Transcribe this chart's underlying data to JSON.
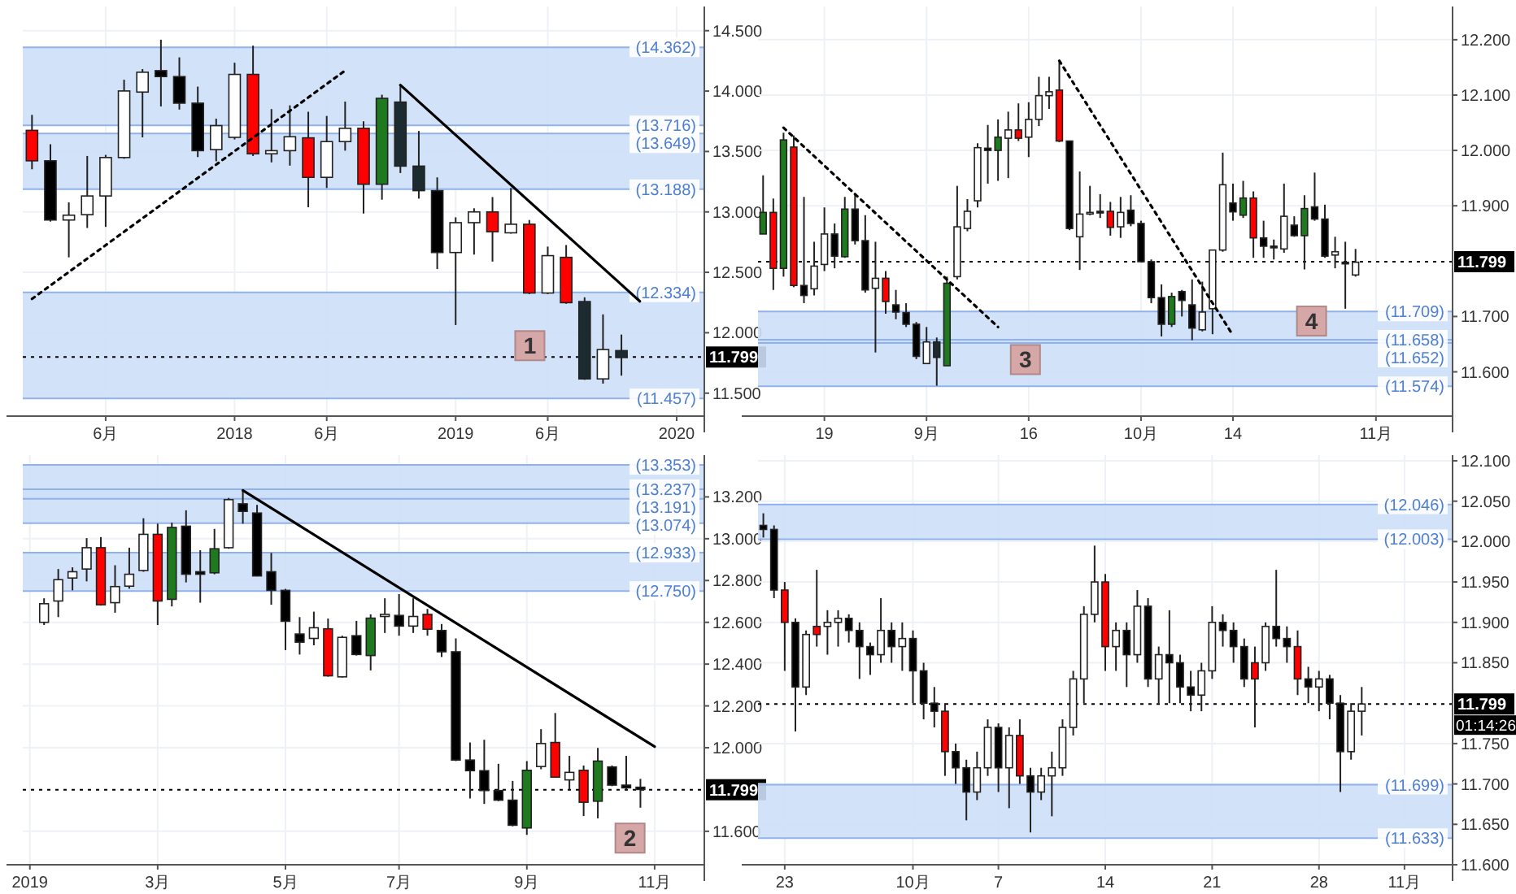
{
  "chart_data": [
    {
      "type": "candlestick",
      "grid": true,
      "categories": [
        null,
        null,
        null,
        null,
        "6月",
        null,
        null,
        null,
        null,
        null,
        null,
        "2018",
        null,
        null,
        null,
        null,
        "6月",
        null,
        null,
        null,
        null,
        null,
        null,
        "2019",
        null,
        null,
        null,
        null,
        "6月",
        null,
        null,
        null,
        null,
        null,
        null,
        "2020",
        null
      ],
      "ohlc": [
        [
          13.675,
          13.803,
          13.353,
          13.423
        ],
        [
          13.423,
          13.56,
          12.92,
          12.933
        ],
        [
          12.933,
          13.079,
          12.624,
          12.973
        ],
        [
          12.977,
          13.463,
          12.867,
          13.132
        ],
        [
          13.132,
          13.472,
          12.876,
          13.45
        ],
        [
          13.45,
          14.094,
          13.44,
          14.001
        ],
        [
          13.992,
          14.182,
          13.617,
          14.156
        ],
        [
          14.169,
          14.425,
          13.873,
          14.12
        ],
        [
          14.12,
          14.279,
          13.847,
          13.9
        ],
        [
          13.9,
          14.037,
          13.454,
          13.507
        ],
        [
          13.516,
          13.772,
          13.419,
          13.714
        ],
        [
          13.617,
          14.235,
          13.6,
          14.138
        ],
        [
          14.138,
          14.376,
          13.463,
          13.481
        ],
        [
          13.481,
          13.851,
          13.41,
          13.507
        ],
        [
          13.507,
          13.882,
          13.383,
          13.622
        ],
        [
          13.613,
          13.829,
          13.039,
          13.286
        ],
        [
          13.286,
          13.794,
          13.198,
          13.582
        ],
        [
          13.582,
          13.913,
          13.507,
          13.692
        ],
        [
          13.692,
          13.75,
          12.986,
          13.229
        ],
        [
          13.229,
          13.97,
          13.101,
          13.94
        ],
        [
          13.909,
          14.054,
          13.322,
          13.379
        ],
        [
          13.379,
          13.67,
          13.11,
          13.176
        ],
        [
          13.176,
          13.286,
          12.527,
          12.664
        ],
        [
          12.664,
          12.955,
          12.064,
          12.911
        ],
        [
          12.911,
          13.03,
          12.647,
          13.0
        ],
        [
          13.0,
          13.123,
          12.589,
          12.836
        ],
        [
          12.827,
          13.198,
          12.82,
          12.898
        ],
        [
          12.898,
          12.933,
          12.32,
          12.329
        ],
        [
          12.329,
          12.713,
          12.32,
          12.638
        ],
        [
          12.624,
          12.726,
          12.24,
          12.249
        ],
        [
          12.258,
          12.293,
          11.61,
          11.618
        ],
        [
          11.618,
          12.152,
          11.579,
          11.861
        ],
        [
          11.852,
          11.985,
          11.645,
          11.795
        ],
        null,
        null,
        null,
        null
      ],
      "colors": [
        "#ff0000",
        "#000000",
        "#ffffff",
        "#ffffff",
        "#ffffff",
        "#ffffff",
        "#ffffff",
        "#000000",
        "#000000",
        "#000000",
        "#ffffff",
        "#ffffff",
        "#ff0000",
        "#ffffff",
        "#ffffff",
        "#ff0000",
        "#ffffff",
        "#ffffff",
        "#ff0000",
        "#1f7a1f",
        "#1b2b2f",
        "#1b2b2f",
        "#000000",
        "#ffffff",
        "#ffffff",
        "#ff0000",
        "#ffffff",
        "#ff0000",
        "#ffffff",
        "#ff0000",
        "#1b2b2f",
        "#ffffff",
        "#1b2b2f",
        null,
        null,
        null,
        null
      ],
      "series": [
        {
          "type": "line",
          "color": "#000000",
          "line_style": "dotted",
          "values": [
            12.28,
            null,
            null,
            null,
            null,
            null,
            null,
            null,
            null,
            null,
            null,
            null,
            null,
            null,
            null,
            null,
            null,
            14.17,
            null,
            null,
            null,
            null,
            null,
            null,
            null,
            null,
            null,
            null,
            null,
            null,
            null,
            null,
            null,
            null,
            null,
            null,
            null
          ]
        },
        {
          "type": "line",
          "color": "#000000",
          "line_style": "solid",
          "values": [
            null,
            null,
            null,
            null,
            null,
            null,
            null,
            null,
            null,
            null,
            null,
            null,
            null,
            null,
            null,
            null,
            null,
            null,
            null,
            null,
            14.05,
            null,
            null,
            null,
            null,
            null,
            null,
            null,
            null,
            null,
            null,
            null,
            null,
            12.26,
            null,
            null,
            null
          ]
        }
      ],
      "ylim": [
        11.31,
        14.7
      ],
      "yticks": [
        {
          "value": 11.5,
          "label": "11.500"
        },
        {
          "value": 12,
          "label": "12.000"
        },
        {
          "value": 12.5,
          "label": "12.500"
        },
        {
          "value": 13,
          "label": "13.000"
        },
        {
          "value": 13.5,
          "label": "13.500"
        },
        {
          "value": 14,
          "label": "14.000"
        },
        {
          "value": 14.5,
          "label": "14.500"
        }
      ],
      "bands": [
        {
          "axis": "y",
          "from": 13.716,
          "to": 14.362,
          "color": "#cddff7"
        },
        {
          "axis": "y",
          "from": 13.188,
          "to": 13.649,
          "color": "#cddff7"
        },
        {
          "axis": "y",
          "from": 11.457,
          "to": 12.334,
          "color": "#cddff7"
        }
      ],
      "ref_lines": [
        {
          "axis": "y",
          "value": 14.362,
          "label": "(14.362)",
          "color": "#8fb2ec"
        },
        {
          "axis": "y",
          "value": 13.716,
          "label": "(13.716)",
          "color": "#8fb2ec"
        },
        {
          "axis": "y",
          "value": 13.649,
          "label": "(13.649)",
          "color": "#8fb2ec"
        },
        {
          "axis": "y",
          "value": 13.188,
          "label": "(13.188)",
          "color": "#8fb2ec"
        },
        {
          "axis": "y",
          "value": 12.334,
          "label": "(12.334)",
          "color": "#8fb2ec"
        },
        {
          "axis": "y",
          "value": 11.457,
          "label": "(11.457)",
          "color": "#8fb2ec"
        },
        {
          "axis": "y",
          "value": 11.799,
          "label": "11.799",
          "color": "#000000",
          "line_style": "dotted"
        }
      ],
      "annotations": [
        "1"
      ]
    },
    {
      "type": "candlestick",
      "grid": true,
      "categories": [
        null,
        null,
        null,
        null,
        null,
        null,
        "19",
        null,
        null,
        null,
        null,
        null,
        null,
        null,
        null,
        null,
        "9月",
        null,
        null,
        null,
        null,
        null,
        null,
        null,
        null,
        null,
        "16",
        null,
        null,
        null,
        null,
        null,
        null,
        null,
        null,
        null,
        null,
        "10月",
        null,
        null,
        null,
        null,
        null,
        null,
        null,
        null,
        "14",
        null,
        null,
        null,
        null,
        null,
        null,
        null,
        null,
        null,
        null,
        null,
        null,
        null,
        "11月",
        null,
        null,
        null,
        null,
        null,
        null,
        null
      ],
      "ohlc": [
        [
          11.849,
          11.955,
          11.849,
          11.888
        ],
        [
          11.888,
          11.913,
          11.748,
          11.787
        ],
        [
          11.787,
          12.032,
          11.772,
          12.019
        ],
        [
          12.006,
          12.027,
          11.753,
          11.756
        ],
        [
          11.756,
          11.916,
          11.724,
          11.738
        ],
        [
          11.75,
          11.835,
          11.738,
          11.791
        ],
        [
          11.794,
          11.897,
          11.782,
          11.849
        ],
        [
          11.849,
          11.868,
          11.787,
          11.809
        ],
        [
          11.808,
          11.916,
          11.806,
          11.894
        ],
        [
          11.894,
          11.923,
          11.83,
          11.837
        ],
        [
          11.837,
          11.883,
          11.743,
          11.748
        ],
        [
          11.751,
          11.835,
          11.635,
          11.769
        ],
        [
          11.769,
          11.782,
          11.705,
          11.727
        ],
        [
          11.721,
          11.748,
          11.695,
          11.708
        ],
        [
          11.707,
          11.724,
          11.681,
          11.686
        ],
        [
          11.686,
          11.69,
          11.623,
          11.628
        ],
        [
          11.615,
          11.681,
          11.615,
          11.654
        ],
        [
          11.654,
          11.662,
          11.575,
          11.626
        ],
        [
          11.611,
          11.772,
          11.611,
          11.76
        ],
        [
          11.772,
          11.936,
          11.767,
          11.862
        ],
        [
          11.859,
          11.912,
          11.854,
          11.89
        ],
        [
          11.909,
          12.013,
          11.897,
          12.005
        ],
        [
          12.004,
          12.046,
          11.94,
          12.0
        ],
        [
          12.0,
          12.056,
          11.945,
          12.024
        ],
        [
          12.022,
          12.07,
          11.95,
          12.037
        ],
        [
          12.037,
          12.085,
          12.017,
          12.022
        ],
        [
          12.024,
          12.087,
          11.988,
          12.056
        ],
        [
          12.056,
          12.133,
          12.044,
          12.099
        ],
        [
          12.099,
          12.133,
          12.075,
          12.106
        ],
        [
          12.109,
          12.162,
          12.015,
          12.017
        ],
        [
          12.017,
          12.017,
          11.856,
          11.859
        ],
        [
          11.844,
          11.962,
          11.784,
          11.885
        ],
        [
          11.887,
          11.936,
          11.883,
          11.888
        ],
        [
          11.89,
          11.921,
          11.878,
          11.887
        ],
        [
          11.89,
          11.907,
          11.846,
          11.861
        ],
        [
          11.862,
          11.916,
          11.842,
          11.888
        ],
        [
          11.892,
          11.919,
          11.863,
          11.868
        ],
        [
          11.868,
          11.873,
          11.799,
          11.799
        ],
        [
          11.799,
          11.803,
          11.724,
          11.734
        ],
        [
          11.734,
          11.758,
          11.664,
          11.686
        ],
        [
          11.686,
          11.743,
          11.681,
          11.736
        ],
        [
          11.745,
          11.748,
          11.7,
          11.729
        ],
        [
          11.721,
          11.767,
          11.657,
          11.679
        ],
        [
          11.676,
          11.763,
          11.673,
          11.708
        ],
        [
          11.714,
          11.82,
          11.668,
          11.82
        ],
        [
          11.82,
          11.996,
          11.817,
          11.938
        ],
        [
          11.905,
          11.94,
          11.873,
          11.889
        ],
        [
          11.883,
          11.945,
          11.878,
          11.914
        ],
        [
          11.914,
          11.926,
          11.806,
          11.842
        ],
        [
          11.842,
          11.873,
          11.806,
          11.827
        ],
        [
          11.827,
          11.839,
          11.803,
          11.825
        ],
        [
          11.822,
          11.94,
          11.815,
          11.881
        ],
        [
          11.865,
          11.881,
          11.844,
          11.846
        ],
        [
          11.846,
          11.919,
          11.785,
          11.895
        ],
        [
          11.898,
          11.96,
          11.873,
          11.876
        ],
        [
          11.876,
          11.902,
          11.806,
          11.809
        ],
        [
          11.811,
          11.844,
          11.787,
          11.817
        ],
        [
          11.798,
          11.835,
          11.714,
          11.796
        ],
        [
          11.775,
          11.822,
          11.772,
          11.798
        ],
        null,
        null,
        null,
        null,
        null,
        null,
        null,
        null,
        null
      ],
      "colors": [
        "#1f7a1f",
        "#ff0000",
        "#1f7a1f",
        "#ff0000",
        "#000000",
        "#ffffff",
        "#ffffff",
        "#000000",
        "#1f7a1f",
        "#000000",
        "#000000",
        "#ffffff",
        "#ff0000",
        "#000000",
        "#000000",
        "#000000",
        "#ffffff",
        "#1b2b2f",
        "#1f7a1f",
        "#ffffff",
        "#ffffff",
        "#ffffff",
        "#000000",
        "#1f7a1f",
        "#ffffff",
        "#ff0000",
        "#ffffff",
        "#ffffff",
        "#ffffff",
        "#ff0000",
        "#000000",
        "#ffffff",
        "#ffffff",
        "#000000",
        "#ff0000",
        "#ffffff",
        "#000000",
        "#000000",
        "#000000",
        "#000000",
        "#1f7a1f",
        "#000000",
        "#000000",
        "#ffffff",
        "#ffffff",
        "#ffffff",
        "#000000",
        "#1f7a1f",
        "#ff0000",
        "#000000",
        "#000000",
        "#ffffff",
        "#000000",
        "#1f7a1f",
        "#000000",
        "#000000",
        "#ffffff",
        "#000000",
        "#ffffff",
        null,
        null,
        null,
        null,
        null,
        null,
        null,
        null,
        null
      ],
      "series": [
        {
          "type": "line",
          "color": "#000000",
          "line_style": "dotted",
          "values": [
            null,
            null,
            12.041,
            null,
            null,
            null,
            null,
            null,
            null,
            null,
            null,
            null,
            null,
            null,
            null,
            null,
            null,
            null,
            null,
            null,
            null,
            null,
            null,
            11.681,
            null,
            null,
            null,
            null,
            null,
            null,
            null,
            null,
            null,
            null,
            null,
            null,
            null,
            null,
            null,
            null,
            null,
            null,
            null,
            null,
            null,
            null,
            null,
            null,
            null,
            null,
            null,
            null,
            null,
            null,
            null,
            null,
            null,
            null,
            null,
            null,
            null,
            null,
            null,
            null,
            null,
            null,
            null,
            null
          ]
        },
        {
          "type": "line",
          "color": "#000000",
          "line_style": "dotted",
          "values": [
            null,
            null,
            null,
            null,
            null,
            null,
            null,
            null,
            null,
            null,
            null,
            null,
            null,
            null,
            null,
            null,
            null,
            null,
            null,
            null,
            null,
            null,
            null,
            null,
            null,
            null,
            null,
            null,
            null,
            12.162,
            null,
            null,
            null,
            null,
            null,
            null,
            null,
            null,
            null,
            null,
            null,
            null,
            null,
            null,
            null,
            null,
            11.666,
            null,
            null,
            null,
            null,
            null,
            null,
            null,
            null,
            null,
            null,
            null,
            null,
            null,
            null,
            null,
            null,
            null,
            null,
            null,
            null,
            null
          ]
        }
      ],
      "ylim": [
        11.52,
        12.26
      ],
      "yticks": [
        {
          "value": 11.6,
          "label": "11.600"
        },
        {
          "value": 11.7,
          "label": "11.700"
        },
        {
          "value": 11.9,
          "label": "11.900"
        },
        {
          "value": 12,
          "label": "12.000"
        },
        {
          "value": 12.1,
          "label": "12.100"
        },
        {
          "value": 12.2,
          "label": "12.200"
        }
      ],
      "bands": [
        {
          "axis": "y",
          "from": 11.652,
          "to": 11.709,
          "color": "#cddff7"
        },
        {
          "axis": "y",
          "from": 11.574,
          "to": 11.658,
          "color": "#cddff7"
        }
      ],
      "ref_lines": [
        {
          "axis": "y",
          "value": 11.709,
          "label": "(11.709)",
          "color": "#8fb2ec"
        },
        {
          "axis": "y",
          "value": 11.658,
          "label": "(11.658)",
          "color": "#8fb2ec"
        },
        {
          "axis": "y",
          "value": 11.652,
          "label": "(11.652)",
          "color": "#8fb2ec"
        },
        {
          "axis": "y",
          "value": 11.574,
          "label": "(11.574)",
          "color": "#8fb2ec"
        },
        {
          "axis": "y",
          "value": 11.799,
          "label": "11.799",
          "color": "#000000",
          "line_style": "dotted"
        }
      ],
      "annotations": [
        "3",
        "4"
      ]
    },
    {
      "type": "candlestick",
      "grid": true,
      "categories": [
        "2019",
        null,
        null,
        null,
        null,
        null,
        null,
        null,
        null,
        "3月",
        null,
        null,
        null,
        null,
        null,
        null,
        null,
        null,
        "5月",
        null,
        null,
        null,
        null,
        null,
        null,
        null,
        "7月",
        null,
        null,
        null,
        null,
        null,
        null,
        null,
        null,
        "9月",
        null,
        null,
        null,
        null,
        null,
        null,
        null,
        null,
        "11月",
        null,
        null,
        null
      ],
      "ohlc": [
        null,
        [
          12.6,
          12.715,
          12.587,
          12.689
        ],
        [
          12.702,
          12.855,
          12.625,
          12.804
        ],
        [
          12.812,
          12.863,
          12.753,
          12.842
        ],
        [
          12.855,
          13.003,
          12.796,
          12.957
        ],
        [
          12.957,
          13.008,
          12.68,
          12.684
        ],
        [
          12.694,
          12.873,
          12.646,
          12.771
        ],
        [
          12.773,
          12.957,
          12.761,
          12.83
        ],
        [
          12.848,
          13.098,
          12.842,
          13.021
        ],
        [
          13.021,
          13.072,
          12.587,
          12.702
        ],
        [
          12.71,
          13.077,
          12.676,
          13.054
        ],
        [
          13.06,
          13.136,
          12.791,
          12.83
        ],
        [
          12.842,
          12.945,
          12.694,
          12.83
        ],
        [
          12.837,
          13.047,
          12.83,
          12.952
        ],
        [
          12.957,
          13.195,
          12.952,
          13.187
        ],
        [
          13.167,
          13.231,
          13.072,
          13.131
        ],
        [
          13.123,
          13.162,
          12.82,
          12.822
        ],
        [
          12.842,
          12.932,
          12.684,
          12.753
        ],
        [
          12.753,
          12.76,
          12.467,
          12.605
        ],
        [
          12.544,
          12.625,
          12.446,
          12.505
        ],
        [
          12.523,
          12.651,
          12.49,
          12.574
        ],
        [
          12.569,
          12.618,
          12.34,
          12.344
        ],
        [
          12.339,
          12.536,
          12.336,
          12.528
        ],
        [
          12.536,
          12.607,
          12.441,
          12.446
        ],
        [
          12.441,
          12.638,
          12.37,
          12.62
        ],
        [
          12.628,
          12.715,
          12.549,
          12.638
        ],
        [
          12.633,
          12.735,
          12.536,
          12.582
        ],
        [
          12.582,
          12.715,
          12.549,
          12.628
        ],
        [
          12.638,
          12.664,
          12.536,
          12.567
        ],
        [
          12.561,
          12.592,
          12.434,
          12.459
        ],
        [
          12.459,
          12.523,
          11.936,
          11.941
        ],
        [
          11.941,
          12.025,
          11.757,
          11.89
        ],
        [
          11.89,
          12.038,
          11.731,
          11.795
        ],
        [
          11.795,
          11.923,
          11.744,
          11.749
        ],
        [
          11.749,
          11.841,
          11.624,
          11.629
        ],
        [
          11.616,
          11.936,
          11.583,
          11.892
        ],
        [
          11.91,
          12.089,
          11.897,
          12.02
        ],
        [
          12.025,
          12.166,
          11.857,
          11.859
        ],
        [
          11.846,
          11.961,
          11.795,
          11.882
        ],
        [
          11.892,
          11.915,
          11.673,
          11.739
        ],
        [
          11.744,
          11.999,
          11.662,
          11.936
        ],
        [
          11.908,
          11.915,
          11.816,
          11.821
        ],
        [
          11.821,
          11.961,
          11.795,
          11.808
        ],
        [
          11.811,
          11.851,
          11.713,
          11.8
        ],
        null,
        null,
        null,
        null
      ],
      "colors": [
        null,
        "#ffffff",
        "#ffffff",
        "#ffffff",
        "#ffffff",
        "#ff0000",
        "#ffffff",
        "#ffffff",
        "#ffffff",
        "#ff0000",
        "#1f7a1f",
        "#000000",
        "#000000",
        "#1f7a1f",
        "#ffffff",
        "#000000",
        "#000000",
        "#000000",
        "#000000",
        "#000000",
        "#ffffff",
        "#ff0000",
        "#ffffff",
        "#000000",
        "#1f7a1f",
        "#ffffff",
        "#000000",
        "#ffffff",
        "#ff0000",
        "#000000",
        "#000000",
        "#000000",
        "#000000",
        "#000000",
        "#000000",
        "#1f7a1f",
        "#ffffff",
        "#ff0000",
        "#ffffff",
        "#ff0000",
        "#1f7a1f",
        "#000000",
        "#000000",
        "#000000",
        null,
        null,
        null,
        null
      ],
      "series": [
        {
          "type": "line",
          "color": "#000000",
          "line_style": "solid",
          "values": [
            null,
            null,
            null,
            null,
            null,
            null,
            null,
            null,
            null,
            null,
            null,
            null,
            null,
            null,
            null,
            13.231,
            null,
            null,
            null,
            null,
            null,
            null,
            null,
            null,
            null,
            null,
            null,
            null,
            null,
            null,
            null,
            null,
            null,
            null,
            null,
            null,
            null,
            null,
            null,
            null,
            null,
            null,
            null,
            null,
            12.005,
            null,
            null,
            null
          ]
        }
      ],
      "ylim": [
        11.44,
        13.4
      ],
      "yticks": [
        {
          "value": 11.6,
          "label": "11.600"
        },
        {
          "value": 12,
          "label": "12.000"
        },
        {
          "value": 12.2,
          "label": "12.200"
        },
        {
          "value": 12.4,
          "label": "12.400"
        },
        {
          "value": 12.6,
          "label": "12.600"
        },
        {
          "value": 12.8,
          "label": "12.800"
        },
        {
          "value": 13,
          "label": "13.000"
        },
        {
          "value": 13.2,
          "label": "13.200"
        }
      ],
      "bands": [
        {
          "axis": "y",
          "from": 13.191,
          "to": 13.353,
          "color": "#cddff7"
        },
        {
          "axis": "y",
          "from": 13.074,
          "to": 13.237,
          "color": "#cddff7"
        },
        {
          "axis": "y",
          "from": 12.75,
          "to": 12.933,
          "color": "#cddff7"
        }
      ],
      "ref_lines": [
        {
          "axis": "y",
          "value": 13.353,
          "label": "(13.353)",
          "color": "#8fb2ec"
        },
        {
          "axis": "y",
          "value": 13.237,
          "label": "(13.237)",
          "color": "#8fb2ec"
        },
        {
          "axis": "y",
          "value": 13.191,
          "label": "(13.191)",
          "color": "#8fb2ec"
        },
        {
          "axis": "y",
          "value": 13.074,
          "label": "(13.074)",
          "color": "#8fb2ec"
        },
        {
          "axis": "y",
          "value": 12.933,
          "label": "(12.933)",
          "color": "#8fb2ec"
        },
        {
          "axis": "y",
          "value": 12.75,
          "label": "(12.750)",
          "color": "#8fb2ec"
        },
        {
          "axis": "y",
          "value": 11.799,
          "label": "11.799",
          "color": "#000000",
          "line_style": "dotted"
        }
      ],
      "annotations": [
        "2"
      ]
    },
    {
      "type": "candlestick",
      "grid": true,
      "categories": [
        null,
        null,
        "23",
        null,
        null,
        null,
        null,
        null,
        null,
        null,
        null,
        null,
        null,
        null,
        "10月",
        null,
        null,
        null,
        null,
        null,
        null,
        null,
        "7",
        null,
        null,
        null,
        null,
        null,
        null,
        null,
        null,
        null,
        "14",
        null,
        null,
        null,
        null,
        null,
        null,
        null,
        null,
        null,
        "21",
        null,
        null,
        null,
        null,
        null,
        null,
        null,
        null,
        null,
        "28",
        null,
        null,
        null,
        null,
        null,
        null,
        null,
        "11月",
        null,
        null,
        null,
        null
      ],
      "ohlc": [
        [
          12.02,
          12.035,
          12.005,
          12.015
        ],
        [
          12.015,
          12.02,
          11.93,
          11.94
        ],
        [
          11.94,
          11.95,
          11.84,
          11.9
        ],
        [
          11.9,
          11.905,
          11.765,
          11.82
        ],
        [
          11.82,
          11.89,
          11.81,
          11.885
        ],
        [
          11.885,
          11.965,
          11.87,
          11.895
        ],
        [
          11.895,
          11.915,
          11.86,
          11.9
        ],
        [
          11.9,
          11.915,
          11.87,
          11.905
        ],
        [
          11.905,
          11.91,
          11.875,
          11.89
        ],
        [
          11.89,
          11.9,
          11.83,
          11.87
        ],
        [
          11.87,
          11.875,
          11.835,
          11.86
        ],
        [
          11.86,
          11.93,
          11.85,
          11.89
        ],
        [
          11.89,
          11.9,
          11.85,
          11.87
        ],
        [
          11.87,
          11.9,
          11.84,
          11.88
        ],
        [
          11.88,
          11.89,
          11.8,
          11.84
        ],
        [
          11.84,
          11.85,
          11.78,
          11.8
        ],
        [
          11.8,
          11.82,
          11.77,
          11.79
        ],
        [
          11.79,
          11.8,
          11.71,
          11.74
        ],
        [
          11.74,
          11.75,
          11.7,
          11.72
        ],
        [
          11.72,
          11.73,
          11.655,
          11.69
        ],
        [
          11.69,
          11.74,
          11.68,
          11.72
        ],
        [
          11.72,
          11.78,
          11.71,
          11.77
        ],
        [
          11.77,
          11.775,
          11.69,
          11.72
        ],
        [
          11.72,
          11.77,
          11.67,
          11.76
        ],
        [
          11.76,
          11.78,
          11.7,
          11.71
        ],
        [
          11.71,
          11.72,
          11.64,
          11.69
        ],
        [
          11.69,
          11.72,
          11.68,
          11.71
        ],
        [
          11.71,
          11.74,
          11.66,
          11.72
        ],
        [
          11.72,
          11.78,
          11.71,
          11.77
        ],
        [
          11.77,
          11.84,
          11.76,
          11.83
        ],
        [
          11.83,
          11.92,
          11.8,
          11.91
        ],
        [
          11.91,
          11.995,
          11.9,
          11.95
        ],
        [
          11.95,
          11.96,
          11.84,
          11.87
        ],
        [
          11.87,
          11.9,
          11.84,
          11.89
        ],
        [
          11.89,
          11.9,
          11.82,
          11.86
        ],
        [
          11.86,
          11.94,
          11.85,
          11.92
        ],
        [
          11.92,
          11.93,
          11.82,
          11.83
        ],
        [
          11.83,
          11.87,
          11.8,
          11.86
        ],
        [
          11.86,
          11.915,
          11.8,
          11.85
        ],
        [
          11.85,
          11.86,
          11.8,
          11.82
        ],
        [
          11.82,
          11.84,
          11.79,
          11.81
        ],
        [
          11.81,
          11.85,
          11.79,
          11.84
        ],
        [
          11.84,
          11.92,
          11.83,
          11.9
        ],
        [
          11.9,
          11.91,
          11.87,
          11.89
        ],
        [
          11.89,
          11.9,
          11.85,
          11.87
        ],
        [
          11.87,
          11.88,
          11.82,
          11.83
        ],
        [
          11.83,
          11.87,
          11.77,
          11.85
        ],
        [
          11.85,
          11.9,
          11.84,
          11.895
        ],
        [
          11.895,
          11.965,
          11.87,
          11.88
        ],
        [
          11.88,
          11.895,
          11.85,
          11.87
        ],
        [
          11.87,
          11.89,
          11.81,
          11.83
        ],
        [
          11.83,
          11.845,
          11.8,
          11.82
        ],
        [
          11.82,
          11.84,
          11.79,
          11.83
        ],
        [
          11.83,
          11.835,
          11.78,
          11.8
        ],
        [
          11.8,
          11.81,
          11.69,
          11.74
        ],
        [
          11.74,
          11.8,
          11.73,
          11.79
        ],
        [
          11.79,
          11.82,
          11.76,
          11.799
        ],
        null,
        null,
        null,
        null,
        null,
        null,
        null,
        null
      ],
      "colors": [
        "#000000",
        "#000000",
        "#ff0000",
        "#000000",
        "#ffffff",
        "#ff0000",
        "#ffffff",
        "#ffffff",
        "#000000",
        "#000000",
        "#000000",
        "#ffffff",
        "#000000",
        "#ffffff",
        "#000000",
        "#000000",
        "#000000",
        "#ff0000",
        "#000000",
        "#000000",
        "#ffffff",
        "#ffffff",
        "#000000",
        "#ffffff",
        "#ff0000",
        "#000000",
        "#ffffff",
        "#ffffff",
        "#ffffff",
        "#ffffff",
        "#ffffff",
        "#ffffff",
        "#ff0000",
        "#ffffff",
        "#000000",
        "#ffffff",
        "#000000",
        "#ffffff",
        "#000000",
        "#000000",
        "#000000",
        "#ffffff",
        "#ffffff",
        "#000000",
        "#000000",
        "#000000",
        "#ff0000",
        "#ffffff",
        "#000000",
        "#000000",
        "#ff0000",
        "#000000",
        "#ffffff",
        "#000000",
        "#000000",
        "#ffffff",
        "#ffffff",
        null,
        null,
        null,
        null,
        null,
        null,
        null,
        null
      ],
      "ylim": [
        11.6,
        12.107
      ],
      "yticks": [
        {
          "value": 11.6,
          "label": "11.600"
        },
        {
          "value": 11.65,
          "label": "11.650"
        },
        {
          "value": 11.7,
          "label": "11.700"
        },
        {
          "value": 11.75,
          "label": "11.750"
        },
        {
          "value": 11.85,
          "label": "11.850"
        },
        {
          "value": 11.9,
          "label": "11.900"
        },
        {
          "value": 11.95,
          "label": "11.950"
        },
        {
          "value": 12,
          "label": "12.000"
        },
        {
          "value": 12.05,
          "label": "12.050"
        },
        {
          "value": 12.1,
          "label": "12.100"
        }
      ],
      "bands": [
        {
          "axis": "y",
          "from": 12.003,
          "to": 12.046,
          "color": "#cddff7"
        },
        {
          "axis": "y",
          "from": 11.633,
          "to": 11.699,
          "color": "#cddff7"
        }
      ],
      "ref_lines": [
        {
          "axis": "y",
          "value": 12.046,
          "label": "(12.046)",
          "color": "#8fb2ec"
        },
        {
          "axis": "y",
          "value": 12.003,
          "label": "(12.003)",
          "color": "#8fb2ec"
        },
        {
          "axis": "y",
          "value": 11.699,
          "label": "(11.699)",
          "color": "#8fb2ec"
        },
        {
          "axis": "y",
          "value": 11.633,
          "label": "(11.633)",
          "color": "#8fb2ec"
        },
        {
          "axis": "y",
          "value": 11.799,
          "label": "11.799",
          "color": "#000000",
          "line_style": "dotted"
        }
      ],
      "annotations": [
        "01:14:26"
      ]
    }
  ]
}
